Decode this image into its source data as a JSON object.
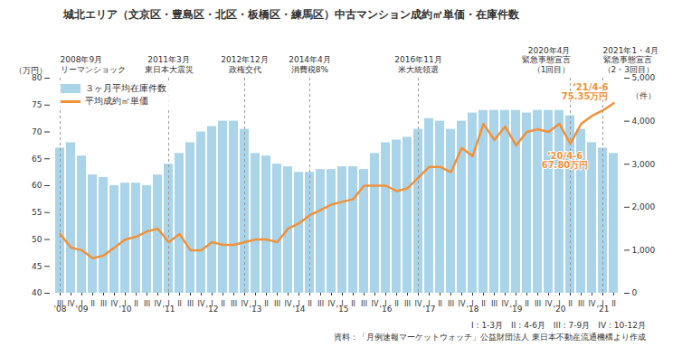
{
  "chart_data": {
    "type": "combo",
    "title": "城北エリア（文京区・豊島区・北区・板橋区・練馬区）中古マンション成約㎡単価・在庫件数",
    "ylabel": "（万円）",
    "y2label": "（件）",
    "categories": [
      "III",
      "IV",
      "I",
      "II",
      "III",
      "IV",
      "I",
      "II",
      "III",
      "IV",
      "I",
      "II",
      "III",
      "IV",
      "I",
      "II",
      "III",
      "IV",
      "I",
      "II",
      "III",
      "IV",
      "I",
      "II",
      "III",
      "IV",
      "I",
      "II",
      "III",
      "IV",
      "I",
      "II",
      "III",
      "IV",
      "I",
      "II",
      "III",
      "IV",
      "I",
      "II",
      "III",
      "IV",
      "I",
      "II",
      "III",
      "IV",
      "I",
      "II",
      "III",
      "IV",
      "I",
      "II"
    ],
    "year_labels": [
      "'08",
      null,
      "'09",
      null,
      null,
      null,
      "'10",
      null,
      null,
      null,
      "'11",
      null,
      null,
      null,
      "'12",
      null,
      null,
      null,
      "'13",
      null,
      null,
      null,
      "'14",
      null,
      null,
      null,
      "'15",
      null,
      null,
      null,
      "'16",
      null,
      null,
      null,
      "'17",
      null,
      null,
      null,
      "'18",
      null,
      null,
      null,
      "'19",
      null,
      null,
      null,
      "'20",
      null,
      null,
      null,
      "'21",
      null
    ],
    "ylim": [
      40,
      80
    ],
    "yticks": [
      40,
      45,
      50,
      55,
      60,
      65,
      70,
      75,
      80
    ],
    "y2lim": [
      0,
      5000
    ],
    "y2ticks": [
      0,
      {
        "value": 1000,
        "label": "1,000"
      },
      {
        "value": 2000,
        "label": "2,000"
      },
      {
        "value": 3000,
        "label": "3,000"
      },
      {
        "value": 4000,
        "label": "4,000"
      },
      {
        "value": 5000,
        "label": "5,000"
      }
    ],
    "grid": false,
    "legend": "top-left",
    "series": [
      {
        "name": "３ヶ月平均在庫件数",
        "type": "bar",
        "axis": "y2",
        "color": "#a9d4ea",
        "values": [
          3375,
          3500,
          3190,
          2750,
          2690,
          2500,
          2560,
          2560,
          2500,
          2750,
          3000,
          3250,
          3500,
          3750,
          3875,
          4000,
          4000,
          3810,
          3250,
          3190,
          3000,
          2940,
          2810,
          2810,
          2875,
          2875,
          2940,
          2940,
          2875,
          3250,
          3500,
          3560,
          3625,
          3810,
          4060,
          4000,
          3810,
          4000,
          4190,
          4250,
          4250,
          4250,
          4250,
          4190,
          4250,
          4250,
          4250,
          4125,
          3810,
          3500,
          3375,
          3250
        ]
      },
      {
        "name": "平均成約㎡単価",
        "type": "line",
        "color": "#f0923a",
        "values": [
          51,
          48.5,
          48,
          46.5,
          47,
          48.5,
          50,
          50.5,
          51.5,
          52,
          49.5,
          51,
          48,
          48,
          49.5,
          49,
          49,
          49.5,
          50,
          50,
          49.5,
          52,
          53,
          54.5,
          55.5,
          56.5,
          57,
          57.5,
          60,
          60,
          60,
          59,
          59.5,
          61.5,
          63.5,
          63.5,
          62.5,
          67,
          65.5,
          71.5,
          68.5,
          71,
          67.5,
          70,
          70.5,
          70,
          71.5,
          67.8,
          71.5,
          73,
          74,
          75.35
        ]
      }
    ],
    "events": [
      {
        "index": 0,
        "label": "2008年9月\nリーマンショック"
      },
      {
        "index": 10,
        "label": "2011年3月\n東日本大震災"
      },
      {
        "index": 17,
        "label": "2012年12月\n政権交代"
      },
      {
        "index": 23,
        "label": "2014年4月\n消費税8%"
      },
      {
        "index": 33,
        "label": "2016年11月\n米大統領選"
      },
      {
        "index": 47,
        "label": "2020年4月\n緊急事態宣言\n（1回目）"
      },
      {
        "index": 50,
        "label": "2021年1・4月\n緊急事態宣言\n（2・3回目）"
      }
    ],
    "annotations": [
      {
        "index": 51,
        "text": "‘21/4-6\n75.35万円"
      },
      {
        "index": 47,
        "text": "‘20/4-6\n67.80万円"
      }
    ],
    "notes": [
      "I : 1-3月　II : 4-6月　III : 7-9月　IV : 10-12月",
      "資料：「月例速報マーケットウォッチ」公益財団法人 東日本不動産流通機構より作成"
    ]
  }
}
